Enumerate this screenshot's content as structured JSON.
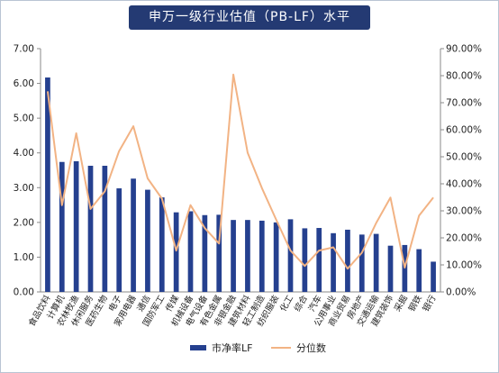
{
  "chart_data": {
    "type": "bar",
    "title": "申万一级行业估值（PB-LF）水平",
    "categories": [
      "食品饮料",
      "计算机",
      "农林牧渔",
      "休闲服务",
      "医药生物",
      "电子",
      "家用电器",
      "通信",
      "国防军工",
      "传媒",
      "机械设备",
      "电气设备",
      "有色金属",
      "非银金融",
      "建筑材料",
      "轻工制造",
      "纺织服装",
      "化工",
      "综合",
      "汽车",
      "公用事业",
      "商业贸易",
      "房地产",
      "交通运输",
      "建筑装饰",
      "采掘",
      "钢铁",
      "银行"
    ],
    "series": [
      {
        "name": "市净率LF",
        "type": "bar",
        "axis": "left",
        "color": "#25408f",
        "values": [
          6.17,
          3.74,
          3.76,
          3.63,
          3.63,
          2.98,
          3.26,
          2.94,
          2.72,
          2.29,
          2.32,
          2.21,
          2.22,
          2.07,
          2.07,
          2.05,
          2.0,
          2.09,
          1.83,
          1.84,
          1.69,
          1.79,
          1.65,
          1.67,
          1.33,
          1.35,
          1.23,
          0.87
        ]
      },
      {
        "name": "分位数",
        "type": "line",
        "axis": "right",
        "color": "#f2b384",
        "values": [
          74.2,
          32.1,
          58.7,
          30.7,
          37.2,
          52.1,
          61.3,
          42.0,
          34.5,
          15.3,
          32.1,
          23.6,
          17.9,
          80.4,
          51.5,
          38.4,
          26.7,
          15.3,
          9.6,
          15.3,
          16.5,
          8.6,
          14.5,
          25.5,
          34.9,
          9.0,
          28.2,
          34.9
        ]
      }
    ],
    "y_left": {
      "min": 0,
      "max": 7,
      "ticks": [
        "0.00",
        "1.00",
        "2.00",
        "3.00",
        "4.00",
        "5.00",
        "6.00",
        "7.00"
      ]
    },
    "y_right": {
      "min": 0,
      "max": 90,
      "ticks": [
        "0.00%",
        "10.00%",
        "20.00%",
        "30.00%",
        "40.00%",
        "50.00%",
        "60.00%",
        "70.00%",
        "80.00%",
        "90.00%"
      ]
    },
    "legend_position": "bottom",
    "grid": false
  }
}
